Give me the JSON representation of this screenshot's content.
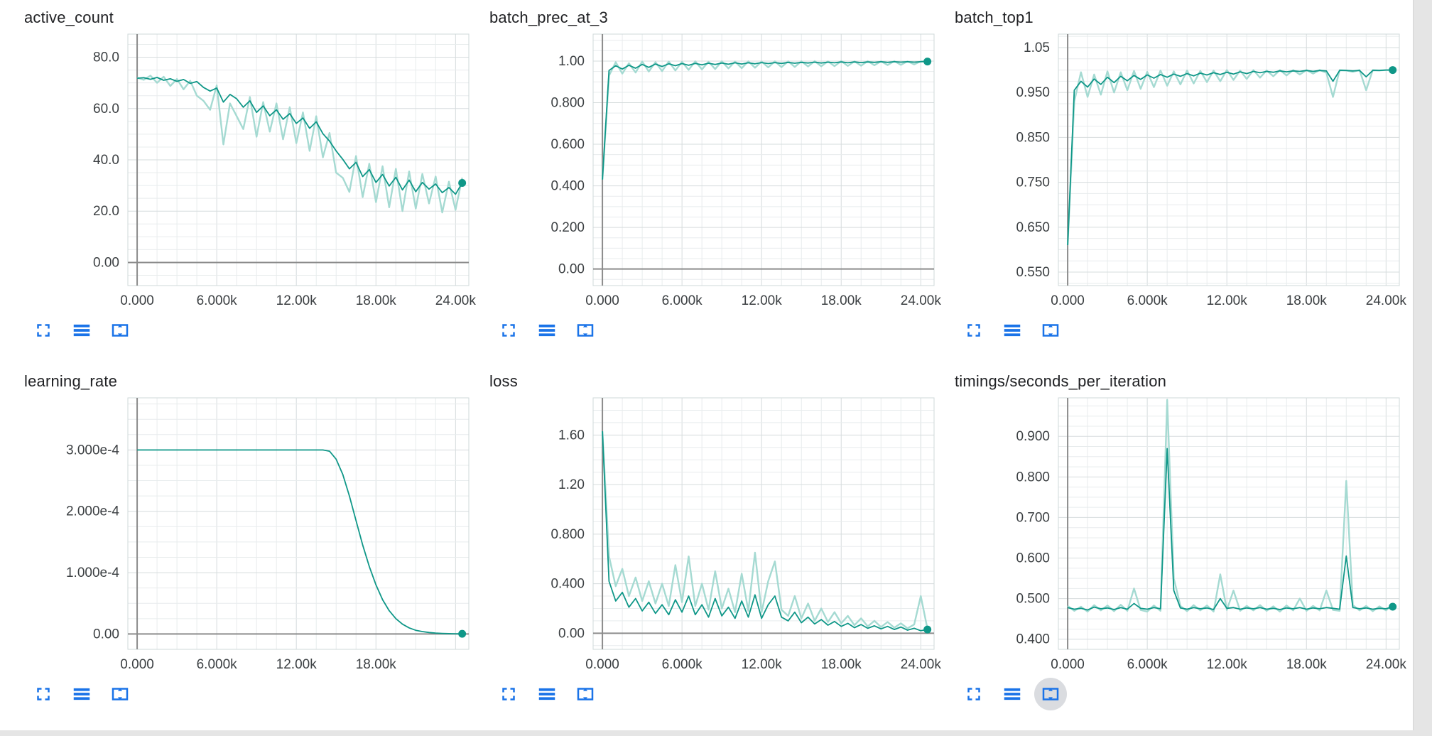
{
  "colors": {
    "line": "#0f9788",
    "raw": "#a5dad2",
    "grid_minor": "#e8eced",
    "grid_major": "#d6dcdd",
    "plot_border": "#cfd8da",
    "zero": "#8c8c8c",
    "tick_text": "#3c4043",
    "title_text": "#202124",
    "icon_blue": "#1a73e8"
  },
  "toolbar": {
    "buttons": [
      {
        "name": "expand",
        "icon": "fullscreen-corners-icon"
      },
      {
        "name": "data-table",
        "icon": "horizontal-bars-icon"
      },
      {
        "name": "fit-domain",
        "icon": "overscan-arrows-icon"
      }
    ]
  },
  "x_values": [
    0,
    500,
    1000,
    1500,
    2000,
    2500,
    3000,
    3500,
    4000,
    4500,
    5000,
    5500,
    6000,
    6500,
    7000,
    7500,
    8000,
    8500,
    9000,
    9500,
    10000,
    10500,
    11000,
    11500,
    12000,
    12500,
    13000,
    13500,
    14000,
    14500,
    15000,
    15500,
    16000,
    16500,
    17000,
    17500,
    18000,
    18500,
    19000,
    19500,
    20000,
    20500,
    21000,
    21500,
    22000,
    22500,
    23000,
    23500,
    24000,
    24500
  ],
  "chart_data": [
    {
      "type": "line",
      "title": "active_count",
      "xlim": [
        -700,
        25000
      ],
      "ylim": [
        -9,
        89
      ],
      "grid": {
        "x_step": 1500,
        "y_step": 5
      },
      "zero_x": true,
      "zero_y": true,
      "x_ticks": [
        {
          "v": 0,
          "label": "0.000"
        },
        {
          "v": 6000,
          "label": "6.000k"
        },
        {
          "v": 12000,
          "label": "12.00k"
        },
        {
          "v": 18000,
          "label": "18.00k"
        },
        {
          "v": 24000,
          "label": "24.00k"
        }
      ],
      "y_ticks": [
        {
          "v": 80,
          "label": "80.0"
        },
        {
          "v": 60,
          "label": "60.0"
        },
        {
          "v": 40,
          "label": "40.0"
        },
        {
          "v": 20,
          "label": "20.0"
        },
        {
          "v": 0,
          "label": "0.00"
        }
      ],
      "series": {
        "smoothed": [
          71.8,
          72.0,
          71.4,
          72.1,
          71.0,
          71.6,
          70.6,
          71.3,
          69.8,
          70.5,
          68.2,
          66.8,
          68.0,
          62.5,
          65.5,
          63.8,
          60.5,
          63.0,
          58.5,
          61.0,
          57.2,
          59.5,
          55.8,
          58.0,
          54.2,
          56.3,
          52.3,
          54.8,
          50.2,
          47.3,
          43.5,
          40.2,
          36.5,
          39.0,
          33.5,
          36.2,
          31.2,
          34.3,
          29.8,
          33.2,
          28.3,
          32.1,
          27.6,
          31.2,
          28.6,
          30.6,
          27.2,
          29.2,
          26.6,
          31.0
        ],
        "raw": [
          72.0,
          71.2,
          72.8,
          70.0,
          72.4,
          68.8,
          71.5,
          67.5,
          70.8,
          65.0,
          63.0,
          59.5,
          69.0,
          46.0,
          62.0,
          57.0,
          52.0,
          64.5,
          49.0,
          62.5,
          51.0,
          62.0,
          48.0,
          60.5,
          46.5,
          58.5,
          43.5,
          57.0,
          41.0,
          50.5,
          35.0,
          33.0,
          27.5,
          41.5,
          25.5,
          38.5,
          23.5,
          37.5,
          21.5,
          36.5,
          20.0,
          35.5,
          21.0,
          34.5,
          23.0,
          33.5,
          19.5,
          31.5,
          20.5,
          33.0
        ]
      }
    },
    {
      "type": "line",
      "title": "batch_prec_at_3",
      "xlim": [
        -700,
        25000
      ],
      "ylim": [
        -0.08,
        1.13
      ],
      "grid": {
        "x_step": 1500,
        "y_step": 0.05
      },
      "zero_x": true,
      "zero_y": true,
      "x_ticks": [
        {
          "v": 0,
          "label": "0.000"
        },
        {
          "v": 6000,
          "label": "6.000k"
        },
        {
          "v": 12000,
          "label": "12.00k"
        },
        {
          "v": 18000,
          "label": "18.00k"
        },
        {
          "v": 24000,
          "label": "24.00k"
        }
      ],
      "y_ticks": [
        {
          "v": 1,
          "label": "1.00"
        },
        {
          "v": 0.8,
          "label": "0.800"
        },
        {
          "v": 0.6,
          "label": "0.600"
        },
        {
          "v": 0.4,
          "label": "0.400"
        },
        {
          "v": 0.2,
          "label": "0.200"
        },
        {
          "v": 0,
          "label": "0.00"
        }
      ],
      "series": {
        "smoothed": [
          0.43,
          0.955,
          0.978,
          0.962,
          0.98,
          0.966,
          0.984,
          0.97,
          0.986,
          0.974,
          0.987,
          0.978,
          0.988,
          0.98,
          0.989,
          0.982,
          0.99,
          0.984,
          0.991,
          0.985,
          0.992,
          0.986,
          0.992,
          0.987,
          0.993,
          0.988,
          0.993,
          0.989,
          0.994,
          0.99,
          0.994,
          0.991,
          0.995,
          0.991,
          0.995,
          0.992,
          0.996,
          0.992,
          0.996,
          0.993,
          0.996,
          0.994,
          0.997,
          0.994,
          0.997,
          0.995,
          0.997,
          0.995,
          0.997,
          0.998
        ],
        "raw": [
          0.43,
          0.93,
          0.995,
          0.94,
          0.99,
          0.945,
          0.998,
          0.95,
          0.995,
          0.952,
          0.998,
          0.955,
          0.996,
          0.958,
          0.999,
          0.96,
          0.997,
          0.962,
          0.999,
          0.965,
          0.998,
          0.966,
          0.999,
          0.968,
          0.998,
          0.97,
          0.999,
          0.971,
          0.999,
          0.972,
          0.999,
          0.974,
          1.0,
          0.975,
          0.999,
          0.976,
          1.0,
          0.977,
          0.999,
          0.978,
          1.0,
          0.98,
          0.999,
          0.981,
          1.0,
          0.982,
          0.999,
          0.984,
          0.999,
          1.0
        ]
      }
    },
    {
      "type": "line",
      "title": "batch_top1",
      "xlim": [
        -700,
        25000
      ],
      "ylim": [
        0.52,
        1.08
      ],
      "grid": {
        "x_step": 1500,
        "y_step": 0.025
      },
      "zero_x": true,
      "zero_y": false,
      "x_ticks": [
        {
          "v": 0,
          "label": "0.000"
        },
        {
          "v": 6000,
          "label": "6.000k"
        },
        {
          "v": 12000,
          "label": "12.00k"
        },
        {
          "v": 18000,
          "label": "18.00k"
        },
        {
          "v": 24000,
          "label": "24.00k"
        }
      ],
      "y_ticks": [
        {
          "v": 1.05,
          "label": "1.05"
        },
        {
          "v": 0.95,
          "label": "0.950"
        },
        {
          "v": 0.85,
          "label": "0.850"
        },
        {
          "v": 0.75,
          "label": "0.750"
        },
        {
          "v": 0.65,
          "label": "0.650"
        },
        {
          "v": 0.55,
          "label": "0.550"
        }
      ],
      "series": {
        "smoothed": [
          0.61,
          0.955,
          0.975,
          0.962,
          0.98,
          0.968,
          0.984,
          0.972,
          0.986,
          0.976,
          0.988,
          0.979,
          0.989,
          0.982,
          0.99,
          0.984,
          0.991,
          0.986,
          0.992,
          0.987,
          0.993,
          0.989,
          0.994,
          0.99,
          0.995,
          0.991,
          0.996,
          0.992,
          0.997,
          0.994,
          0.997,
          0.995,
          0.998,
          0.996,
          0.998,
          0.997,
          0.999,
          0.997,
          0.999,
          0.998,
          0.975,
          0.999,
          0.999,
          0.998,
          0.999,
          0.985,
          0.999,
          0.999,
          1.0,
          1.0
        ],
        "raw": [
          0.61,
          0.93,
          0.995,
          0.94,
          0.99,
          0.945,
          0.997,
          0.95,
          0.995,
          0.955,
          0.998,
          0.958,
          0.996,
          0.962,
          0.999,
          0.965,
          0.997,
          0.968,
          0.999,
          0.97,
          0.998,
          0.973,
          0.999,
          0.975,
          1.0,
          0.978,
          0.999,
          0.98,
          1.0,
          0.983,
          0.999,
          0.986,
          1.0,
          0.988,
          1.0,
          0.99,
          1.0,
          0.992,
          1.0,
          0.994,
          0.94,
          1.0,
          0.999,
          0.996,
          1.0,
          0.955,
          1.0,
          0.999,
          1.0,
          1.0
        ]
      }
    },
    {
      "type": "line",
      "title": "learning_rate",
      "xlim": [
        -700,
        25000
      ],
      "ylim": [
        -2.5e-05,
        0.000385
      ],
      "grid": {
        "x_step": 1500,
        "y_step": 2.5e-05
      },
      "zero_x": true,
      "zero_y": true,
      "x_ticks": [
        {
          "v": 0,
          "label": "0.000"
        },
        {
          "v": 6000,
          "label": "6.000k"
        },
        {
          "v": 12000,
          "label": "12.00k"
        },
        {
          "v": 18000,
          "label": "18.00k"
        }
      ],
      "y_ticks": [
        {
          "v": 0.0003,
          "label": "3.000e-4"
        },
        {
          "v": 0.0002,
          "label": "2.000e-4"
        },
        {
          "v": 0.0001,
          "label": "1.000e-4"
        },
        {
          "v": 0,
          "label": "0.00"
        }
      ],
      "series": {
        "smoothed": [
          0.0003,
          0.0003,
          0.0003,
          0.0003,
          0.0003,
          0.0003,
          0.0003,
          0.0003,
          0.0003,
          0.0003,
          0.0003,
          0.0003,
          0.0003,
          0.0003,
          0.0003,
          0.0003,
          0.0003,
          0.0003,
          0.0003,
          0.0003,
          0.0003,
          0.0003,
          0.0003,
          0.0003,
          0.0003,
          0.0003,
          0.0003,
          0.0003,
          0.0003,
          0.000298,
          0.000285,
          0.00026,
          0.000225,
          0.000185,
          0.000145,
          0.00011,
          8e-05,
          5.6e-05,
          3.8e-05,
          2.5e-05,
          1.6e-05,
          1e-05,
          6e-06,
          4e-06,
          2.5e-06,
          1.5e-06,
          1e-06,
          6e-07,
          4e-07,
          3e-07
        ]
      }
    },
    {
      "type": "line",
      "title": "loss",
      "xlim": [
        -700,
        25000
      ],
      "ylim": [
        -0.13,
        1.9
      ],
      "grid": {
        "x_step": 1500,
        "y_step": 0.1
      },
      "zero_x": true,
      "zero_y": true,
      "x_ticks": [
        {
          "v": 0,
          "label": "0.000"
        },
        {
          "v": 6000,
          "label": "6.000k"
        },
        {
          "v": 12000,
          "label": "12.00k"
        },
        {
          "v": 18000,
          "label": "18.00k"
        },
        {
          "v": 24000,
          "label": "24.00k"
        }
      ],
      "y_ticks": [
        {
          "v": 1.6,
          "label": "1.60"
        },
        {
          "v": 1.2,
          "label": "1.20"
        },
        {
          "v": 0.8,
          "label": "0.800"
        },
        {
          "v": 0.4,
          "label": "0.400"
        },
        {
          "v": 0,
          "label": "0.00"
        }
      ],
      "series": {
        "smoothed": [
          1.63,
          0.42,
          0.26,
          0.33,
          0.21,
          0.28,
          0.18,
          0.25,
          0.16,
          0.23,
          0.15,
          0.27,
          0.17,
          0.3,
          0.15,
          0.23,
          0.13,
          0.28,
          0.14,
          0.21,
          0.12,
          0.26,
          0.13,
          0.31,
          0.12,
          0.23,
          0.3,
          0.13,
          0.1,
          0.17,
          0.085,
          0.13,
          0.075,
          0.11,
          0.065,
          0.095,
          0.055,
          0.08,
          0.045,
          0.07,
          0.04,
          0.06,
          0.035,
          0.055,
          0.03,
          0.05,
          0.025,
          0.04,
          0.02,
          0.03
        ],
        "raw": [
          1.63,
          0.62,
          0.38,
          0.52,
          0.3,
          0.45,
          0.26,
          0.42,
          0.24,
          0.4,
          0.22,
          0.55,
          0.25,
          0.62,
          0.22,
          0.4,
          0.19,
          0.5,
          0.2,
          0.36,
          0.17,
          0.48,
          0.18,
          0.65,
          0.17,
          0.42,
          0.58,
          0.19,
          0.14,
          0.3,
          0.12,
          0.24,
          0.1,
          0.2,
          0.09,
          0.17,
          0.08,
          0.14,
          0.065,
          0.12,
          0.055,
          0.1,
          0.05,
          0.09,
          0.045,
          0.08,
          0.04,
          0.07,
          0.3,
          0.035
        ]
      }
    },
    {
      "type": "line",
      "title": "timings/seconds_per_iteration",
      "xlim": [
        -700,
        25000
      ],
      "ylim": [
        0.375,
        0.995
      ],
      "grid": {
        "x_step": 1500,
        "y_step": 0.025
      },
      "zero_x": true,
      "zero_y": false,
      "toolbar_hovered": "fit-domain",
      "x_ticks": [
        {
          "v": 0,
          "label": "0.000"
        },
        {
          "v": 6000,
          "label": "6.000k"
        },
        {
          "v": 12000,
          "label": "12.00k"
        },
        {
          "v": 18000,
          "label": "18.00k"
        },
        {
          "v": 24000,
          "label": "24.00k"
        }
      ],
      "y_ticks": [
        {
          "v": 0.9,
          "label": "0.900"
        },
        {
          "v": 0.8,
          "label": "0.800"
        },
        {
          "v": 0.7,
          "label": "0.700"
        },
        {
          "v": 0.6,
          "label": "0.600"
        },
        {
          "v": 0.5,
          "label": "0.500"
        },
        {
          "v": 0.4,
          "label": "0.400"
        }
      ],
      "series": {
        "smoothed": [
          0.478,
          0.474,
          0.476,
          0.472,
          0.479,
          0.475,
          0.477,
          0.473,
          0.478,
          0.474,
          0.488,
          0.476,
          0.474,
          0.478,
          0.475,
          0.87,
          0.52,
          0.477,
          0.474,
          0.478,
          0.475,
          0.477,
          0.473,
          0.5,
          0.476,
          0.478,
          0.474,
          0.477,
          0.475,
          0.478,
          0.474,
          0.476,
          0.473,
          0.477,
          0.475,
          0.478,
          0.474,
          0.477,
          0.475,
          0.478,
          0.476,
          0.474,
          0.605,
          0.478,
          0.475,
          0.477,
          0.474,
          0.476,
          0.475,
          0.48
        ],
        "raw": [
          0.482,
          0.47,
          0.48,
          0.468,
          0.484,
          0.471,
          0.483,
          0.469,
          0.485,
          0.47,
          0.525,
          0.472,
          0.468,
          0.483,
          0.47,
          0.99,
          0.55,
          0.482,
          0.469,
          0.484,
          0.471,
          0.483,
          0.468,
          0.56,
          0.472,
          0.52,
          0.47,
          0.482,
          0.471,
          0.484,
          0.47,
          0.481,
          0.468,
          0.483,
          0.471,
          0.5,
          0.47,
          0.482,
          0.471,
          0.52,
          0.472,
          0.47,
          0.79,
          0.484,
          0.471,
          0.482,
          0.469,
          0.481,
          0.471,
          0.486
        ]
      }
    }
  ]
}
